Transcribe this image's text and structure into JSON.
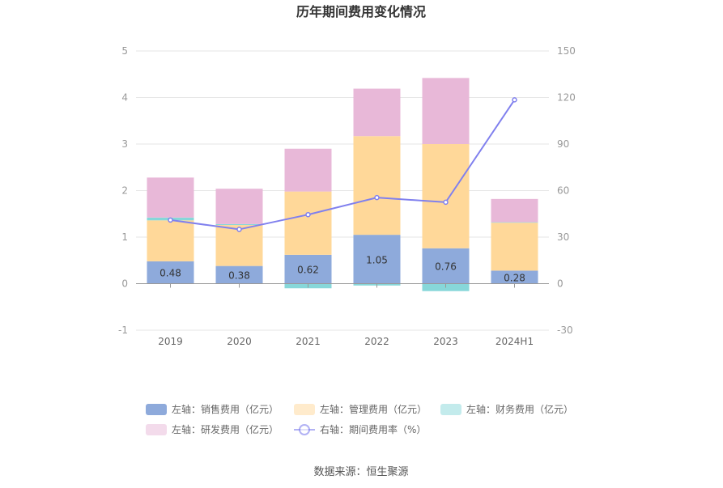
{
  "chart_data": {
    "type": "bar",
    "title": "历年期间费用变化情况",
    "categories": [
      "2019",
      "2020",
      "2021",
      "2022",
      "2023",
      "2024H1"
    ],
    "left_axis": {
      "ylim": [
        -1,
        5
      ],
      "ticks": [
        "-1",
        "0",
        "1",
        "2",
        "3",
        "4",
        "5"
      ]
    },
    "right_axis": {
      "ylim": [
        -30,
        150
      ],
      "ticks": [
        "-30",
        "0",
        "30",
        "60",
        "90",
        "120",
        "150"
      ]
    },
    "series": [
      {
        "name": "左轴：销售费用（亿元）",
        "type": "bar",
        "color": "#8eaadb",
        "values": [
          0.48,
          0.38,
          0.62,
          1.05,
          0.76,
          0.28
        ],
        "labels": [
          "0.48",
          "0.38",
          "0.62",
          "1.05",
          "0.76",
          "0.28"
        ]
      },
      {
        "name": "左轴：管理费用（亿元）",
        "type": "bar",
        "color": "#ffd899",
        "values": [
          0.88,
          0.88,
          1.36,
          2.12,
          2.24,
          1.03
        ]
      },
      {
        "name": "左轴：财务费用（亿元）",
        "type": "bar",
        "color": "#87d7d9",
        "values": [
          0.06,
          0.02,
          -0.1,
          -0.04,
          -0.16,
          0.01
        ]
      },
      {
        "name": "左轴：研发费用（亿元）",
        "type": "bar",
        "color": "#e8b8d8",
        "values": [
          0.86,
          0.76,
          0.92,
          1.02,
          1.42,
          0.5
        ]
      },
      {
        "name": "右轴：期间费用率（%）",
        "type": "line",
        "axis": "right",
        "color": "#8080ee",
        "values": [
          41,
          35,
          44.5,
          55.5,
          52.5,
          118.5
        ]
      }
    ],
    "legend_position": "bottom",
    "grid": true
  },
  "source": "数据来源：恒生聚源"
}
